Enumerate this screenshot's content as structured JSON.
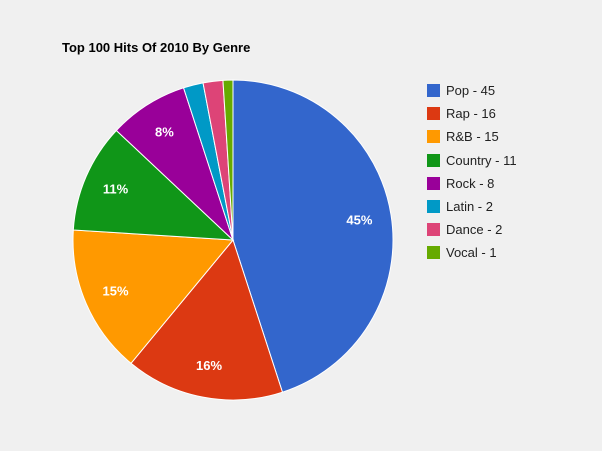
{
  "chart_data": {
    "type": "pie",
    "title": "Top 100 Hits Of 2010 By Genre",
    "legend_position": "right",
    "slices": [
      {
        "legend": "Pop - 45",
        "value": 45,
        "label": "45%",
        "color": "#3366cc"
      },
      {
        "legend": "Rap - 16",
        "value": 16,
        "label": "16%",
        "color": "#dc3912"
      },
      {
        "legend": "R&B - 15",
        "value": 15,
        "label": "15%",
        "color": "#ff9900"
      },
      {
        "legend": "Country - 11",
        "value": 11,
        "label": "11%",
        "color": "#109618"
      },
      {
        "legend": "Rock - 8",
        "value": 8,
        "label": "8%",
        "color": "#990099"
      },
      {
        "legend": "Latin - 2",
        "value": 2,
        "label": "",
        "color": "#0099c6"
      },
      {
        "legend": "Dance - 2",
        "value": 2,
        "label": "",
        "color": "#dd4477"
      },
      {
        "legend": "Vocal - 1",
        "value": 1,
        "label": "",
        "color": "#66aa00"
      }
    ]
  }
}
